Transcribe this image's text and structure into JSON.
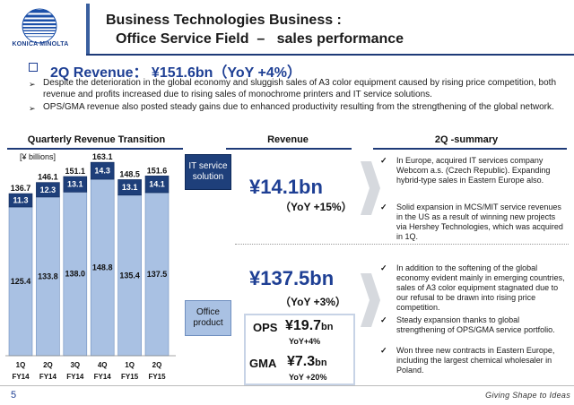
{
  "logo": {
    "text": "KONICA MINOLTA"
  },
  "header": {
    "title_line1": "Business Technologies Business :",
    "title_line2": "Office Service Field  –   sales performance"
  },
  "headline": "2Q Revenue： ¥151.6bn（YoY +4%）",
  "paragraphs": [
    "Despite the deterioration in the global economy and sluggish sales of A3 color equipment caused by rising price competition, both revenue and profits increased due to rising sales of monochrome printers and IT service solutions.",
    "OPS/GMA revenue also posted steady gains due to enhanced productivity resulting from the strengthening of the global network."
  ],
  "chart_section_title": "Quarterly Revenue Transition",
  "revenue_section_title": "Revenue",
  "summary_section_title": "2Q -summary",
  "chart_data": {
    "type": "bar",
    "stacked": true,
    "unit_label": "[¥ billions]",
    "categories": [
      [
        "1Q",
        "FY14"
      ],
      [
        "2Q",
        "FY14"
      ],
      [
        "3Q",
        "FY14"
      ],
      [
        "4Q",
        "FY14"
      ],
      [
        "1Q",
        "FY15"
      ],
      [
        "2Q",
        "FY15"
      ]
    ],
    "series": [
      {
        "name": "Office product",
        "values": [
          125.4,
          133.8,
          138.0,
          148.8,
          135.4,
          137.5
        ],
        "color": "#a9c1e3"
      },
      {
        "name": "IT service solution",
        "values": [
          11.3,
          12.3,
          13.1,
          14.3,
          13.1,
          14.1
        ],
        "color": "#1e3f7a"
      }
    ],
    "totals": [
      136.7,
      146.1,
      151.1,
      163.1,
      148.5,
      151.6
    ],
    "ylim": [
      0,
      170
    ]
  },
  "legend": {
    "it": "IT service solution",
    "office": "Office product"
  },
  "it_revenue": {
    "amount": "¥14.1bn",
    "yoy": "（YoY +15%）"
  },
  "office_revenue": {
    "amount": "¥137.5bn",
    "yoy": "（YoY +3%）"
  },
  "ops": {
    "label": "OPS",
    "amount": "¥19.7",
    "unit": "bn",
    "yoy": "YoY+4%"
  },
  "gma": {
    "label": "GMA",
    "amount": "¥7.3",
    "unit": "bn",
    "yoy": "YoY +20%"
  },
  "summary": {
    "it": [
      "In Europe, acquired IT services company Webcom a.s. (Czech Republic). Expanding hybrid-type sales in Eastern Europe also.",
      "Solid expansion in MCS/MIT service revenues in the US as a result of winning new projects via Hershey Technologies, which was acquired in 1Q."
    ],
    "office": [
      "In addition to the softening of the global economy evident mainly in emerging countries, sales of A3 color equipment stagnated due to our refusal to be drawn into rising price competition.",
      "Steady expansion thanks to global strengthening of OPS/GMA service portfolio.",
      "Won three new contracts in Eastern Europe, including the largest chemical wholesaler in Poland."
    ]
  },
  "footer": {
    "page_number": "5",
    "tagline": "Giving Shape to Ideas"
  },
  "colors": {
    "brand": "#1e3f94",
    "dark_bar": "#1e3f7a",
    "light_bar": "#a9c1e3"
  }
}
